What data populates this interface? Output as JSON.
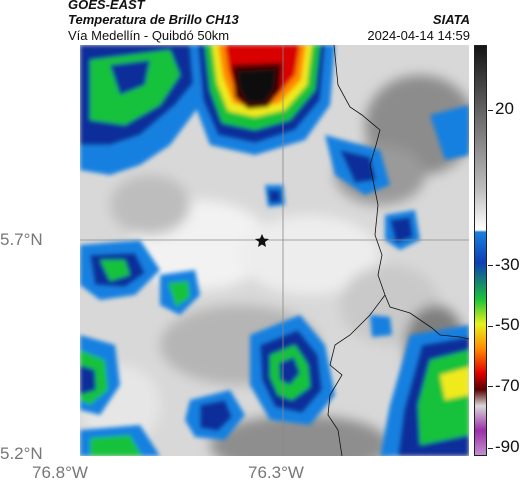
{
  "header": {
    "satellite": "GOES-EAST",
    "product": "Temperatura de Brillo CH13",
    "route": "Vía Medellín - Quibdó 50km",
    "organization": "SIATA",
    "timestamp": "2024-04-14 14:59"
  },
  "axes": {
    "latitude_labels": [
      "5.7°N",
      "5.2°N"
    ],
    "longitude_labels": [
      "76.8°W",
      "76.3°W"
    ]
  },
  "colorbar": {
    "tick_labels": [
      "20",
      "-30",
      "-50",
      "-70",
      "-90"
    ],
    "colors": [
      "#141414",
      "#6e6e6e",
      "#bdbdbd",
      "#ffffff",
      "#1a7fe0",
      "#0d3fb5",
      "#1cc43a",
      "#e7f21d",
      "#ff8c00",
      "#e00000",
      "#5a0000",
      "#d8d8d8",
      "#9b2fa7",
      "#c38fd0"
    ]
  },
  "map": {
    "marker_icon": "star-icon",
    "colors": {
      "cloud_light": "#e8e8e8",
      "cloud_mid": "#a9a9a9",
      "cloud_dark": "#7d7d7d",
      "cold_blue": "#1480e0",
      "cold_navy": "#0b2f9a",
      "cold_green": "#14c23a",
      "core_yellow": "#f0ea1a",
      "core_orange": "#ff8a00",
      "core_red": "#d90000",
      "core_darkred": "#4a0000",
      "core_black": "#0e0e0e"
    }
  }
}
